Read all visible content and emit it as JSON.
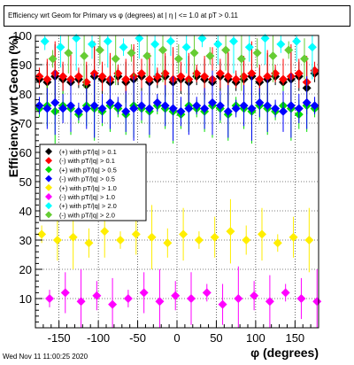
{
  "chart_data": {
    "type": "scatter",
    "title": "Efficiency wrt Geom for Primary vs φ (degrees) at | η | <= 1.0 at pT > 0.11",
    "xlabel": "φ (degrees)",
    "ylabel": "Efficiency wrt Geom (%)",
    "xlim": [
      -180,
      180
    ],
    "ylim": [
      0,
      100
    ],
    "xticks": [
      -150,
      -100,
      -50,
      0,
      50,
      100,
      150
    ],
    "yticks": [
      10,
      20,
      30,
      40,
      50,
      60,
      70,
      80,
      90,
      100
    ],
    "grid": true,
    "legend_position": "left-middle",
    "series": [
      {
        "name": "(+) with pT/|q| > 0.1",
        "color": "#000000",
        "x": [
          -175,
          -165,
          -155,
          -145,
          -135,
          -125,
          -115,
          -105,
          -95,
          -85,
          -75,
          -65,
          -55,
          -45,
          -35,
          -25,
          -15,
          -5,
          5,
          15,
          25,
          35,
          45,
          55,
          65,
          75,
          85,
          95,
          105,
          115,
          125,
          135,
          145,
          155,
          165,
          175
        ],
        "y": [
          85,
          84,
          86,
          85,
          84,
          85,
          83,
          86,
          85,
          84,
          86,
          84,
          85,
          86,
          84,
          85,
          86,
          84,
          85,
          84,
          86,
          85,
          84,
          86,
          85,
          84,
          85,
          86,
          84,
          85,
          86,
          84,
          85,
          86,
          82,
          87
        ]
      },
      {
        "name": "(-) with pT/|q| > 0.1",
        "color": "#ff0000",
        "x": [
          -175,
          -165,
          -155,
          -145,
          -135,
          -125,
          -115,
          -105,
          -95,
          -85,
          -75,
          -65,
          -55,
          -45,
          -35,
          -25,
          -15,
          -5,
          5,
          15,
          25,
          35,
          45,
          55,
          65,
          75,
          85,
          95,
          105,
          115,
          125,
          135,
          145,
          155,
          165,
          175
        ],
        "y": [
          86,
          85,
          87,
          86,
          85,
          86,
          84,
          87,
          86,
          85,
          87,
          85,
          86,
          87,
          85,
          86,
          87,
          85,
          86,
          85,
          87,
          86,
          85,
          87,
          86,
          85,
          86,
          87,
          85,
          86,
          87,
          85,
          86,
          87,
          84,
          88
        ]
      },
      {
        "name": "(+) with pT/|q| > 0.5",
        "color": "#00dd00",
        "x": [
          -175,
          -165,
          -155,
          -145,
          -135,
          -125,
          -115,
          -105,
          -95,
          -85,
          -75,
          -65,
          -55,
          -45,
          -35,
          -25,
          -15,
          -5,
          5,
          15,
          25,
          35,
          45,
          55,
          65,
          75,
          85,
          95,
          105,
          115,
          125,
          135,
          145,
          155,
          165,
          175
        ],
        "y": [
          75,
          76,
          74,
          76,
          75,
          73,
          76,
          75,
          74,
          76,
          75,
          73,
          76,
          75,
          74,
          76,
          75,
          74,
          73,
          76,
          75,
          74,
          76,
          75,
          73,
          76,
          75,
          74,
          76,
          75,
          74,
          76,
          75,
          73,
          76,
          75
        ]
      },
      {
        "name": "(-) with pT/|q| > 0.5",
        "color": "#0000ff",
        "x": [
          -175,
          -165,
          -155,
          -145,
          -135,
          -125,
          -115,
          -105,
          -95,
          -85,
          -75,
          -65,
          -55,
          -45,
          -35,
          -25,
          -15,
          -5,
          5,
          15,
          25,
          35,
          45,
          55,
          65,
          75,
          85,
          95,
          105,
          115,
          125,
          135,
          145,
          155,
          165,
          175
        ],
        "y": [
          76,
          75,
          77,
          75,
          76,
          74,
          75,
          76,
          75,
          77,
          76,
          74,
          75,
          76,
          75,
          77,
          76,
          75,
          74,
          75,
          76,
          75,
          77,
          76,
          74,
          75,
          76,
          75,
          77,
          76,
          75,
          74,
          76,
          75,
          77,
          76
        ]
      },
      {
        "name": "(+) with pT/|q| > 1.0",
        "color": "#ffee00",
        "x": [
          -172,
          -152,
          -132,
          -112,
          -92,
          -72,
          -52,
          -32,
          -12,
          8,
          28,
          48,
          68,
          88,
          108,
          128,
          148,
          168
        ],
        "y": [
          32,
          30,
          31,
          29,
          33,
          30,
          32,
          31,
          29,
          32,
          30,
          31,
          33,
          30,
          32,
          29,
          31,
          30
        ]
      },
      {
        "name": "(-) with pT/|q| > 1.0",
        "color": "#ff00ff",
        "x": [
          -162,
          -142,
          -122,
          -102,
          -82,
          -62,
          -42,
          -22,
          -2,
          18,
          38,
          58,
          78,
          98,
          118,
          138,
          158,
          178
        ],
        "y": [
          10,
          12,
          9,
          11,
          8,
          10,
          12,
          9,
          11,
          10,
          12,
          8,
          10,
          11,
          9,
          12,
          10,
          9
        ]
      },
      {
        "name": "(+) with pT/|q| > 2.0",
        "color": "#00ffff",
        "x": [
          -168,
          -148,
          -128,
          -108,
          -88,
          -68,
          -48,
          -28,
          -8,
          12,
          32,
          52,
          72,
          92,
          112,
          132,
          152,
          172
        ],
        "y": [
          98,
          96,
          99,
          97,
          98,
          96,
          99,
          97,
          98,
          96,
          99,
          97,
          98,
          96,
          99,
          97,
          98,
          96
        ]
      },
      {
        "name": "(-) with pT/|q| > 2.0",
        "color": "#66cc33",
        "x": [
          -158,
          -138,
          -118,
          -98,
          -78,
          -58,
          -38,
          -18,
          2,
          22,
          42,
          62,
          82,
          102,
          122,
          142,
          162
        ],
        "y": [
          92,
          94,
          93,
          95,
          92,
          94,
          93,
          95,
          92,
          94,
          93,
          95,
          92,
          94,
          93,
          95,
          92
        ]
      }
    ]
  },
  "footer": {
    "timestamp": "Wed Nov 11 11:00:25 2020"
  }
}
